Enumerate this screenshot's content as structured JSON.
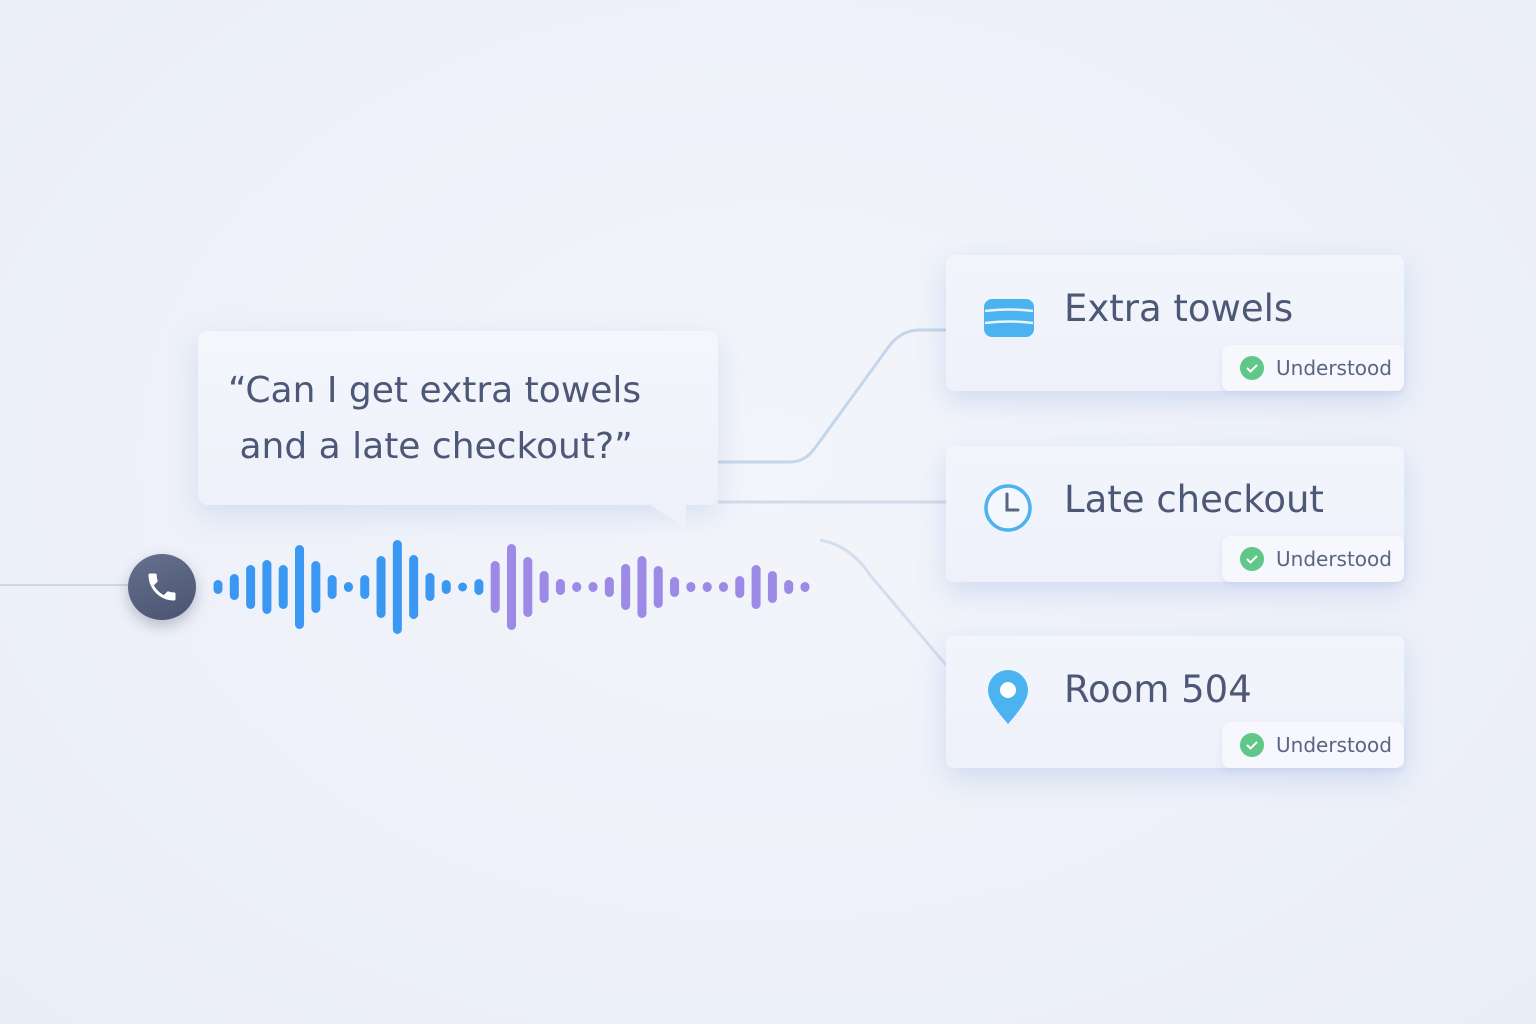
{
  "speech": {
    "line1": "“Can I get extra towels",
    "line2": "and a late checkout?”"
  },
  "waveform": {
    "levels": [
      14,
      26,
      44,
      54,
      44,
      84,
      52,
      24,
      10,
      24,
      62,
      94,
      64,
      28,
      14,
      8,
      16,
      52,
      86,
      60,
      32,
      16,
      10,
      10,
      20,
      46,
      62,
      42,
      20,
      10,
      10,
      10,
      22,
      44,
      32,
      14,
      10
    ],
    "color_start": "#3a98f3",
    "color_end": "#9d8ae6"
  },
  "phone_icon": "phone-icon",
  "intents": [
    {
      "title": "Extra towels",
      "icon": "towels-icon",
      "status": "Understood"
    },
    {
      "title": "Late checkout",
      "icon": "clock-icon",
      "status": "Understood"
    },
    {
      "title": "Room 504",
      "icon": "location-pin-icon",
      "status": "Understood"
    }
  ],
  "colors": {
    "accent_blue": "#4ab3f0",
    "check_green": "#5fc787",
    "text": "#4d5877"
  }
}
